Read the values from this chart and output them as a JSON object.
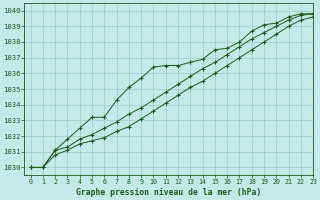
{
  "title": "Graphe pression niveau de la mer (hPa)",
  "bg_color": "#c5e8e8",
  "grid_color": "#a8d0d0",
  "line_color": "#1a5c1a",
  "xlim": [
    -0.5,
    23
  ],
  "ylim": [
    1029.5,
    1040.5
  ],
  "yticks": [
    1030,
    1031,
    1032,
    1033,
    1034,
    1035,
    1036,
    1037,
    1038,
    1039,
    1040
  ],
  "xticks": [
    0,
    1,
    2,
    3,
    4,
    5,
    6,
    7,
    8,
    9,
    10,
    11,
    12,
    13,
    14,
    15,
    16,
    17,
    18,
    19,
    20,
    21,
    22,
    23
  ],
  "series1": [
    1030.0,
    1030.0,
    1031.1,
    1031.8,
    1032.5,
    1033.2,
    1033.2,
    1034.3,
    1035.1,
    1035.7,
    1036.4,
    1036.5,
    1036.5,
    1036.7,
    1036.9,
    1037.5,
    1037.6,
    1038.0,
    1038.7,
    1039.1,
    1039.2,
    1039.6,
    1039.8,
    1039.8
  ],
  "series2": [
    1030.0,
    1030.0,
    1031.1,
    1031.3,
    1031.8,
    1032.1,
    1032.5,
    1032.9,
    1033.4,
    1033.8,
    1034.3,
    1034.8,
    1035.3,
    1035.8,
    1036.3,
    1036.7,
    1037.2,
    1037.7,
    1038.2,
    1038.6,
    1039.0,
    1039.4,
    1039.7,
    1039.8
  ],
  "series3": [
    1030.0,
    1030.0,
    1030.8,
    1031.1,
    1031.5,
    1031.7,
    1031.9,
    1032.3,
    1032.6,
    1033.1,
    1033.6,
    1034.1,
    1034.6,
    1035.1,
    1035.5,
    1036.0,
    1036.5,
    1037.0,
    1037.5,
    1038.0,
    1038.5,
    1039.0,
    1039.4,
    1039.6
  ]
}
